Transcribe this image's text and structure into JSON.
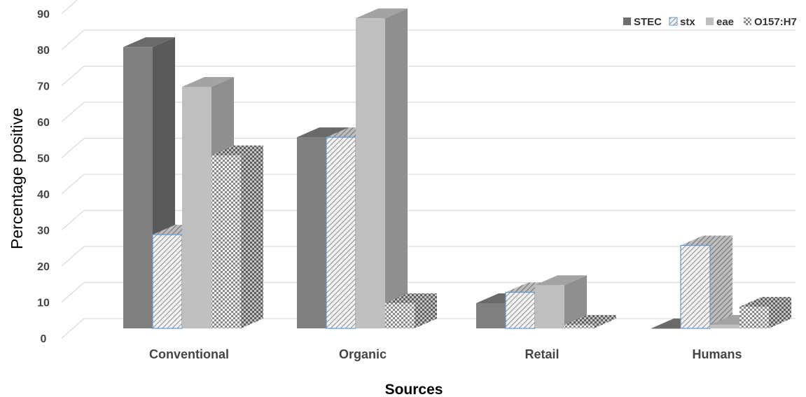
{
  "chart_data": {
    "type": "bar",
    "style": "3d-clustered-column",
    "title": "",
    "xlabel": "Sources",
    "ylabel": "Percentage positive",
    "categories": [
      "Conventional",
      "Organic",
      "Retail",
      "Humans"
    ],
    "series": [
      {
        "name": "STEC",
        "values": [
          78,
          53,
          7,
          0
        ],
        "color": "#7f7f7f",
        "pattern": "solid-dark"
      },
      {
        "name": "stx",
        "values": [
          26,
          53,
          10,
          23
        ],
        "color": "#5b9bd5",
        "pattern": "diagonal-hatch"
      },
      {
        "name": "eae",
        "values": [
          67,
          86,
          12,
          1
        ],
        "color": "#bfbfbf",
        "pattern": "solid-light"
      },
      {
        "name": "O157:H7",
        "values": [
          48,
          7,
          1,
          6
        ],
        "color": "#a6a6a6",
        "pattern": "checker"
      }
    ],
    "yticks": [
      "0",
      "10",
      "20",
      "30",
      "40",
      "50",
      "60",
      "70",
      "80",
      "90"
    ],
    "ylim": [
      0,
      90
    ],
    "grid": true,
    "legend_position": "top-right"
  }
}
